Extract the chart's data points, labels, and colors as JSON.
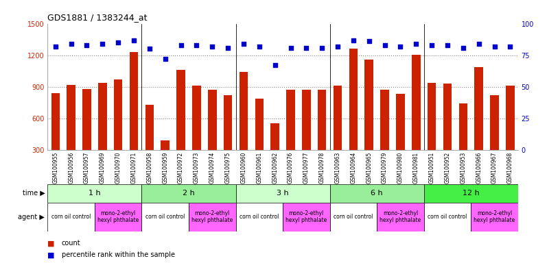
{
  "title": "GDS1881 / 1383244_at",
  "samples": [
    "GSM100955",
    "GSM100956",
    "GSM100957",
    "GSM100969",
    "GSM100970",
    "GSM100971",
    "GSM100958",
    "GSM100959",
    "GSM100972",
    "GSM100973",
    "GSM100974",
    "GSM100975",
    "GSM100960",
    "GSM100961",
    "GSM100962",
    "GSM100976",
    "GSM100977",
    "GSM100978",
    "GSM100963",
    "GSM100964",
    "GSM100965",
    "GSM100979",
    "GSM100980",
    "GSM100981",
    "GSM100951",
    "GSM100952",
    "GSM100953",
    "GSM100966",
    "GSM100967",
    "GSM100968"
  ],
  "counts": [
    840,
    920,
    880,
    940,
    970,
    1230,
    730,
    390,
    1060,
    910,
    870,
    820,
    1040,
    790,
    550,
    870,
    870,
    870,
    910,
    1265,
    1160,
    870,
    830,
    1205,
    940,
    930,
    740,
    1090,
    820,
    910
  ],
  "percentiles": [
    82,
    84,
    83,
    84,
    85,
    87,
    80,
    72,
    83,
    83,
    82,
    81,
    84,
    82,
    67,
    81,
    81,
    81,
    82,
    87,
    86,
    83,
    82,
    84,
    83,
    83,
    81,
    84,
    82,
    82
  ],
  "time_groups": [
    {
      "label": "1 h",
      "start": 0,
      "end": 6,
      "color": "#ccffcc"
    },
    {
      "label": "2 h",
      "start": 6,
      "end": 12,
      "color": "#99ee99"
    },
    {
      "label": "3 h",
      "start": 12,
      "end": 18,
      "color": "#ccffcc"
    },
    {
      "label": "6 h",
      "start": 18,
      "end": 24,
      "color": "#99ee99"
    },
    {
      "label": "12 h",
      "start": 24,
      "end": 30,
      "color": "#44ee44"
    }
  ],
  "agent_groups": [
    {
      "label": "corn oil control",
      "start": 0,
      "end": 3,
      "color": "#ffffff"
    },
    {
      "label": "mono-2-ethyl\nhexyl phthalate",
      "start": 3,
      "end": 6,
      "color": "#ff66ff"
    },
    {
      "label": "corn oil control",
      "start": 6,
      "end": 9,
      "color": "#ffffff"
    },
    {
      "label": "mono-2-ethyl\nhexyl phthalate",
      "start": 9,
      "end": 12,
      "color": "#ff66ff"
    },
    {
      "label": "corn oil control",
      "start": 12,
      "end": 15,
      "color": "#ffffff"
    },
    {
      "label": "mono-2-ethyl\nhexyl phthalate",
      "start": 15,
      "end": 18,
      "color": "#ff66ff"
    },
    {
      "label": "corn oil control",
      "start": 18,
      "end": 21,
      "color": "#ffffff"
    },
    {
      "label": "mono-2-ethyl\nhexyl phthalate",
      "start": 21,
      "end": 24,
      "color": "#ff66ff"
    },
    {
      "label": "corn oil control",
      "start": 24,
      "end": 27,
      "color": "#ffffff"
    },
    {
      "label": "mono-2-ethyl\nhexyl phthalate",
      "start": 27,
      "end": 30,
      "color": "#ff66ff"
    }
  ],
  "bar_color": "#cc2200",
  "dot_color": "#0000cc",
  "ylim_left": [
    300,
    1500
  ],
  "ylim_right": [
    0,
    100
  ],
  "yticks_left": [
    300,
    600,
    900,
    1200,
    1500
  ],
  "yticks_right": [
    0,
    25,
    50,
    75,
    100
  ],
  "grid_values": [
    600,
    900,
    1200
  ],
  "bg_color": "#ffffff",
  "tick_label_color_left": "#cc2200",
  "tick_label_color_right": "#0000cc"
}
